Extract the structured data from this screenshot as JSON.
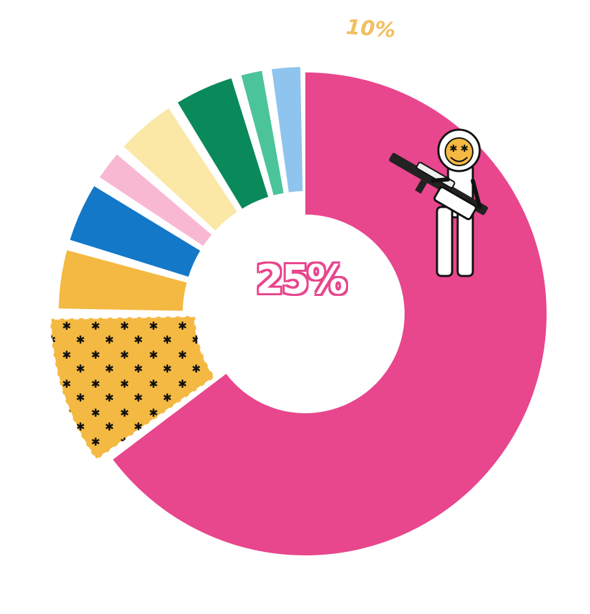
{
  "chart_data": {
    "type": "donut",
    "title": "",
    "center_label": "25%",
    "callout_label": "10%",
    "colors": {
      "magenta": "#e8468d",
      "gold": "#f4b942",
      "blue": "#1478c8",
      "pink": "#f9b8d2",
      "cream": "#fbe8a6",
      "green": "#0a8a5a",
      "mint": "#4cc49a",
      "light_blue": "#8ec4ee"
    },
    "slices": [
      {
        "value": 65.0,
        "color": "#e8468d",
        "emphasis": "highlighted"
      },
      {
        "value": 10.0,
        "color": "#f4b942",
        "emphasis": "patterned",
        "pattern": "stars"
      },
      {
        "value": 4.5,
        "color": "#f4b942",
        "emphasis": "exploded"
      },
      {
        "value": 4.5,
        "color": "#1478c8",
        "emphasis": "exploded"
      },
      {
        "value": 2.5,
        "color": "#f9b8d2",
        "emphasis": "exploded"
      },
      {
        "value": 4.5,
        "color": "#fbe8a6",
        "emphasis": "exploded"
      },
      {
        "value": 4.5,
        "color": "#0a8a5a",
        "emphasis": "exploded"
      },
      {
        "value": 2.0,
        "color": "#4cc49a",
        "emphasis": "exploded"
      },
      {
        "value": 2.5,
        "color": "#8ec4ee",
        "emphasis": "exploded"
      }
    ],
    "illustration": "cartoon-figure-with-rifle"
  }
}
